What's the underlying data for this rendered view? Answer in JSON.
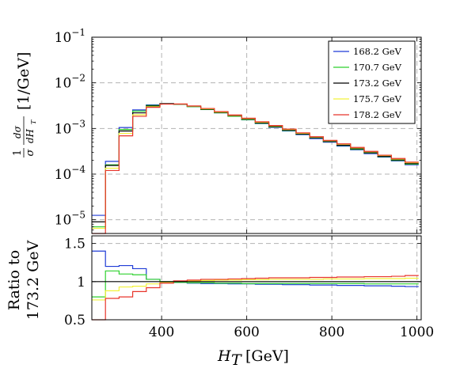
{
  "chart_data": [
    {
      "type": "line",
      "panel": "main",
      "step": true,
      "yscale": "log",
      "ylim": [
        5e-06,
        0.1
      ],
      "xlim": [
        236,
        1010
      ],
      "yticks": [
        {
          "value": 1e-05,
          "mant": "10",
          "exp": "−5"
        },
        {
          "value": 0.0001,
          "mant": "10",
          "exp": "−4"
        },
        {
          "value": 0.001,
          "mant": "10",
          "exp": "−3"
        },
        {
          "value": 0.01,
          "mant": "10",
          "exp": "−2"
        },
        {
          "value": 0.1,
          "mant": "10",
          "exp": "−1"
        }
      ],
      "ylabel": {
        "frac_num": "1",
        "frac_den": "σ",
        "frac2_num": "dσ",
        "frac2_den": "dH",
        "frac2_den_sub": "T",
        "unit": "[1/GeV]"
      },
      "grid": true,
      "legend_position": "top-right",
      "x_edges": [
        236,
        268,
        300,
        332,
        364,
        396,
        428,
        460,
        492,
        524,
        556,
        588,
        620,
        652,
        684,
        716,
        748,
        780,
        812,
        844,
        876,
        908,
        940,
        972,
        1004
      ],
      "series": [
        {
          "name": "168.2 GeV",
          "color": "#1f3bd6",
          "values": [
            1.25e-05,
            0.00019,
            0.00105,
            0.00255,
            0.0033,
            0.00355,
            0.0034,
            0.003,
            0.0026,
            0.0022,
            0.00185,
            0.00155,
            0.00128,
            0.00106,
            0.00088,
            0.00073,
            0.0006,
            0.0005,
            0.00041,
            0.00034,
            0.00028,
            0.000235,
            0.000195,
            0.00016
          ]
        },
        {
          "name": "170.7 GeV",
          "color": "#2ed12e",
          "values": [
            7e-06,
            0.00016,
            0.00095,
            0.0024,
            0.0032,
            0.0035,
            0.00338,
            0.003,
            0.0026,
            0.0022,
            0.00185,
            0.00156,
            0.0013,
            0.00108,
            0.0009,
            0.00075,
            0.00062,
            0.000515,
            0.000425,
            0.00035,
            0.00029,
            0.000242,
            0.0002,
            0.000165
          ]
        },
        {
          "name": "173.2 GeV",
          "color": "#000000",
          "values": [
            9e-06,
            0.000155,
            0.00088,
            0.0022,
            0.0031,
            0.0035,
            0.0034,
            0.00305,
            0.00265,
            0.00225,
            0.0019,
            0.0016,
            0.00133,
            0.0011,
            0.00092,
            0.00076,
            0.00063,
            0.00052,
            0.00043,
            0.00036,
            0.000295,
            0.000245,
            0.000205,
            0.00017
          ]
        },
        {
          "name": "175.7 GeV",
          "color": "#f2f23a",
          "values": [
            6.5e-06,
            0.000135,
            0.00078,
            0.002,
            0.003,
            0.00345,
            0.00342,
            0.00308,
            0.0027,
            0.0023,
            0.00194,
            0.00164,
            0.00137,
            0.00114,
            0.00095,
            0.000785,
            0.00065,
            0.00054,
            0.00045,
            0.000375,
            0.000308,
            0.000255,
            0.000213,
            0.000178
          ]
        },
        {
          "name": "178.2 GeV",
          "color": "#e8352b",
          "values": [
            4.5e-06,
            0.00012,
            0.00069,
            0.00185,
            0.0029,
            0.00342,
            0.00344,
            0.00312,
            0.00274,
            0.00234,
            0.00198,
            0.00168,
            0.0014,
            0.00116,
            0.00097,
            0.0008,
            0.00066,
            0.00055,
            0.00046,
            0.000385,
            0.000315,
            0.00026,
            0.00022,
            0.000183
          ]
        }
      ]
    },
    {
      "type": "line",
      "panel": "ratio",
      "step": true,
      "ylim": [
        0.5,
        1.6
      ],
      "xlim": [
        236,
        1010
      ],
      "yticks": [
        {
          "value": 0.5,
          "label": "0.5"
        },
        {
          "value": 1,
          "label": "1"
        },
        {
          "value": 1.5,
          "label": "1.5"
        }
      ],
      "xticks": [
        {
          "value": 400,
          "label": "400"
        },
        {
          "value": 600,
          "label": "600"
        },
        {
          "value": 800,
          "label": "800"
        },
        {
          "value": 1000,
          "label": "1000"
        }
      ],
      "ylabel_line1": "Ratio to",
      "ylabel_line2": "173.2 GeV",
      "xlabel_main": "H",
      "xlabel_sub": "T",
      "xlabel_unit": "[GeV]",
      "reference": 1,
      "grid": true,
      "x_edges": [
        236,
        268,
        300,
        332,
        364,
        396,
        428,
        460,
        492,
        524,
        556,
        588,
        620,
        652,
        684,
        716,
        748,
        780,
        812,
        844,
        876,
        908,
        940,
        972,
        1004
      ],
      "series": [
        {
          "name": "168.2 GeV",
          "color": "#1f3bd6",
          "values": [
            1.4,
            1.2,
            1.21,
            1.17,
            1.03,
            1.0,
            0.99,
            0.98,
            0.975,
            0.975,
            0.97,
            0.97,
            0.965,
            0.965,
            0.96,
            0.96,
            0.955,
            0.955,
            0.95,
            0.95,
            0.945,
            0.945,
            0.94,
            0.935
          ]
        },
        {
          "name": "170.7 GeV",
          "color": "#2ed12e",
          "values": [
            0.8,
            1.14,
            1.1,
            1.09,
            1.03,
            1.0,
            0.99,
            0.985,
            0.985,
            0.98,
            0.98,
            0.975,
            0.975,
            0.975,
            0.975,
            0.975,
            0.975,
            0.975,
            0.975,
            0.975,
            0.97,
            0.97,
            0.97,
            0.97
          ]
        },
        {
          "name": "175.7 GeV",
          "color": "#f2f23a",
          "values": [
            0.76,
            0.88,
            0.93,
            0.94,
            0.97,
            0.99,
            1.005,
            1.01,
            1.015,
            1.02,
            1.02,
            1.025,
            1.025,
            1.03,
            1.03,
            1.03,
            1.03,
            1.035,
            1.035,
            1.035,
            1.04,
            1.04,
            1.04,
            1.045
          ]
        },
        {
          "name": "178.2 GeV",
          "color": "#e8352b",
          "values": [
            0.5,
            0.78,
            0.8,
            0.87,
            0.92,
            0.98,
            1.01,
            1.02,
            1.03,
            1.03,
            1.035,
            1.04,
            1.045,
            1.05,
            1.05,
            1.05,
            1.055,
            1.055,
            1.06,
            1.06,
            1.065,
            1.065,
            1.07,
            1.08
          ]
        }
      ]
    }
  ]
}
